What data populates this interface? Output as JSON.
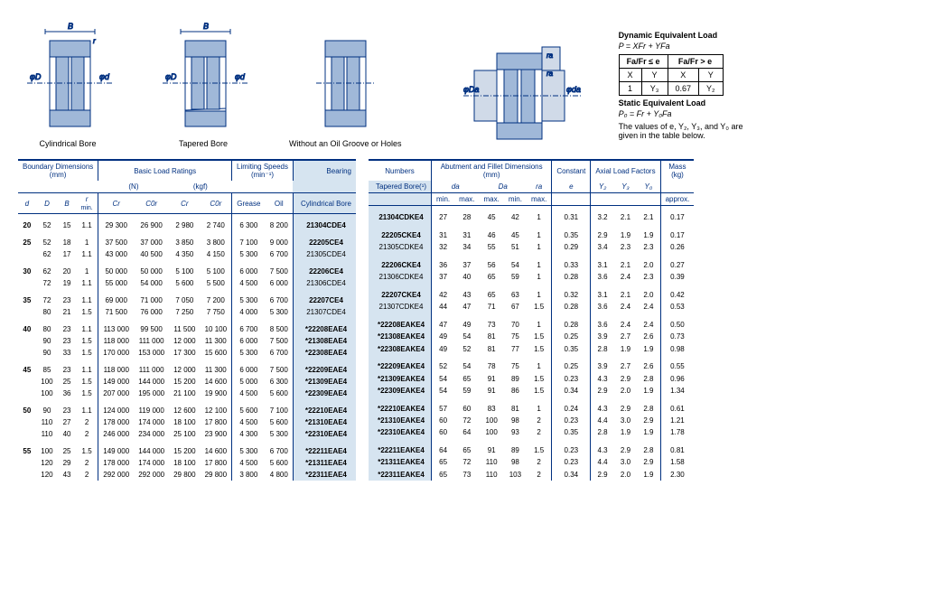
{
  "diagrams": {
    "cyl_label": "Cylindrical Bore",
    "tap_label": "Tapered Bore",
    "nooil_label": "Without an Oil Groove or Holes"
  },
  "formula": {
    "dyn_heading": "Dynamic Equivalent Load",
    "dyn_eq": "P = XFr + YFa",
    "col_le": "Fa/Fr ≤ e",
    "col_gt": "Fa/Fr > e",
    "X": "X",
    "Y": "Y",
    "v1": "1",
    "vY3": "Y₃",
    "v067": "0.67",
    "vY2": "Y₂",
    "static_heading": "Static Equivalent Load",
    "static_eq": "P₀ = Fr + Y₀Fa",
    "note": "The values of e, Y₂, Y₃, and Y₀ are given in the table below."
  },
  "left_headers": {
    "bd": "Boundary Dimensions",
    "bd_unit": "(mm)",
    "blr": "Basic Load Ratings",
    "N": "(N)",
    "kgf": "(kgf)",
    "ls": "Limiting Speeds",
    "ls_unit": "(min⁻¹)",
    "bearing": "Bearing",
    "d": "d",
    "D": "D",
    "B": "B",
    "r": "r",
    "min": "min.",
    "Cr": "Cr",
    "C0r": "C0r",
    "Crk": "Cr",
    "C0rk": "C0r",
    "grease": "Grease",
    "oil": "Oil",
    "cyl": "Cylindrical Bore"
  },
  "right_headers": {
    "numbers": "Numbers",
    "abut": "Abutment and Fillet Dimensions",
    "abut_unit": "(mm)",
    "const": "Constant",
    "axial": "Axial Load Factors",
    "mass": "Mass",
    "mass_unit": "(kg)",
    "tapered": "Tapered Bore(¹)",
    "da": "da",
    "Da": "Da",
    "ra": "ra",
    "min": "min.",
    "max": "max.",
    "e": "e",
    "Y2": "Y₂",
    "Y3": "Y₃",
    "Y0": "Y₀",
    "approx": "approx."
  },
  "left_rows": [
    [
      {
        "d": "20",
        "D": "52",
        "B": "15",
        "r": "1.1",
        "Cr": "29 300",
        "C0r": "26 900",
        "Crk": "2 980",
        "C0rk": "2 740",
        "g": "6 300",
        "o": "8 200",
        "bn": "21304CDE4",
        "bold": true
      }
    ],
    [
      {
        "d": "25",
        "D": "52",
        "B": "18",
        "r": "1",
        "Cr": "37 500",
        "C0r": "37 000",
        "Crk": "3 850",
        "C0rk": "3 800",
        "g": "7 100",
        "o": "9 000",
        "bn": "22205CE4",
        "bold": true
      },
      {
        "d": "",
        "D": "62",
        "B": "17",
        "r": "1.1",
        "Cr": "43 000",
        "C0r": "40 500",
        "Crk": "4 350",
        "C0rk": "4 150",
        "g": "5 300",
        "o": "6 700",
        "bn": "21305CDE4",
        "bold": false
      }
    ],
    [
      {
        "d": "30",
        "D": "62",
        "B": "20",
        "r": "1",
        "Cr": "50 000",
        "C0r": "50 000",
        "Crk": "5 100",
        "C0rk": "5 100",
        "g": "6 000",
        "o": "7 500",
        "bn": "22206CE4",
        "bold": true
      },
      {
        "d": "",
        "D": "72",
        "B": "19",
        "r": "1.1",
        "Cr": "55 000",
        "C0r": "54 000",
        "Crk": "5 600",
        "C0rk": "5 500",
        "g": "4 500",
        "o": "6 000",
        "bn": "21306CDE4",
        "bold": false
      }
    ],
    [
      {
        "d": "35",
        "D": "72",
        "B": "23",
        "r": "1.1",
        "Cr": "69 000",
        "C0r": "71 000",
        "Crk": "7 050",
        "C0rk": "7 200",
        "g": "5 300",
        "o": "6 700",
        "bn": "22207CE4",
        "bold": true
      },
      {
        "d": "",
        "D": "80",
        "B": "21",
        "r": "1.5",
        "Cr": "71 500",
        "C0r": "76 000",
        "Crk": "7 250",
        "C0rk": "7 750",
        "g": "4 000",
        "o": "5 300",
        "bn": "21307CDE4",
        "bold": false
      }
    ],
    [
      {
        "d": "40",
        "D": "80",
        "B": "23",
        "r": "1.1",
        "Cr": "113 000",
        "C0r": "99 500",
        "Crk": "11 500",
        "C0rk": "10 100",
        "g": "6 700",
        "o": "8 500",
        "bn": "*22208EAE4",
        "bold": true
      },
      {
        "d": "",
        "D": "90",
        "B": "23",
        "r": "1.5",
        "Cr": "118 000",
        "C0r": "111 000",
        "Crk": "12 000",
        "C0rk": "11 300",
        "g": "6 000",
        "o": "7 500",
        "bn": "*21308EAE4",
        "bold": true
      },
      {
        "d": "",
        "D": "90",
        "B": "33",
        "r": "1.5",
        "Cr": "170 000",
        "C0r": "153 000",
        "Crk": "17 300",
        "C0rk": "15 600",
        "g": "5 300",
        "o": "6 700",
        "bn": "*22308EAE4",
        "bold": true
      }
    ],
    [
      {
        "d": "45",
        "D": "85",
        "B": "23",
        "r": "1.1",
        "Cr": "118 000",
        "C0r": "111 000",
        "Crk": "12 000",
        "C0rk": "11 300",
        "g": "6 000",
        "o": "7 500",
        "bn": "*22209EAE4",
        "bold": true
      },
      {
        "d": "",
        "D": "100",
        "B": "25",
        "r": "1.5",
        "Cr": "149 000",
        "C0r": "144 000",
        "Crk": "15 200",
        "C0rk": "14 600",
        "g": "5 000",
        "o": "6 300",
        "bn": "*21309EAE4",
        "bold": true
      },
      {
        "d": "",
        "D": "100",
        "B": "36",
        "r": "1.5",
        "Cr": "207 000",
        "C0r": "195 000",
        "Crk": "21 100",
        "C0rk": "19 900",
        "g": "4 500",
        "o": "5 600",
        "bn": "*22309EAE4",
        "bold": true
      }
    ],
    [
      {
        "d": "50",
        "D": "90",
        "B": "23",
        "r": "1.1",
        "Cr": "124 000",
        "C0r": "119 000",
        "Crk": "12 600",
        "C0rk": "12 100",
        "g": "5 600",
        "o": "7 100",
        "bn": "*22210EAE4",
        "bold": true
      },
      {
        "d": "",
        "D": "110",
        "B": "27",
        "r": "2",
        "Cr": "178 000",
        "C0r": "174 000",
        "Crk": "18 100",
        "C0rk": "17 800",
        "g": "4 500",
        "o": "5 600",
        "bn": "*21310EAE4",
        "bold": true
      },
      {
        "d": "",
        "D": "110",
        "B": "40",
        "r": "2",
        "Cr": "246 000",
        "C0r": "234 000",
        "Crk": "25 100",
        "C0rk": "23 900",
        "g": "4 300",
        "o": "5 300",
        "bn": "*22310EAE4",
        "bold": true
      }
    ],
    [
      {
        "d": "55",
        "D": "100",
        "B": "25",
        "r": "1.5",
        "Cr": "149 000",
        "C0r": "144 000",
        "Crk": "15 200",
        "C0rk": "14 600",
        "g": "5 300",
        "o": "6 700",
        "bn": "*22211EAE4",
        "bold": true
      },
      {
        "d": "",
        "D": "120",
        "B": "29",
        "r": "2",
        "Cr": "178 000",
        "C0r": "174 000",
        "Crk": "18 100",
        "C0rk": "17 800",
        "g": "4 500",
        "o": "5 600",
        "bn": "*21311EAE4",
        "bold": true
      },
      {
        "d": "",
        "D": "120",
        "B": "43",
        "r": "2",
        "Cr": "292 000",
        "C0r": "292 000",
        "Crk": "29 800",
        "C0rk": "29 800",
        "g": "3 800",
        "o": "4 800",
        "bn": "*22311EAE4",
        "bold": true
      }
    ]
  ],
  "right_rows": [
    [
      {
        "bn": "21304CDKE4",
        "da_min": "27",
        "da_max": "28",
        "Da_max": "45",
        "Da_min": "42",
        "ra": "1",
        "e": "0.31",
        "Y2": "3.2",
        "Y3": "2.1",
        "Y0": "2.1",
        "m": "0.17",
        "bold": true
      }
    ],
    [
      {
        "bn": "22205CKE4",
        "da_min": "31",
        "da_max": "31",
        "Da_max": "46",
        "Da_min": "45",
        "ra": "1",
        "e": "0.35",
        "Y2": "2.9",
        "Y3": "1.9",
        "Y0": "1.9",
        "m": "0.17",
        "bold": true
      },
      {
        "bn": "21305CDKE4",
        "da_min": "32",
        "da_max": "34",
        "Da_max": "55",
        "Da_min": "51",
        "ra": "1",
        "e": "0.29",
        "Y2": "3.4",
        "Y3": "2.3",
        "Y0": "2.3",
        "m": "0.26",
        "bold": false
      }
    ],
    [
      {
        "bn": "22206CKE4",
        "da_min": "36",
        "da_max": "37",
        "Da_max": "56",
        "Da_min": "54",
        "ra": "1",
        "e": "0.33",
        "Y2": "3.1",
        "Y3": "2.1",
        "Y0": "2.0",
        "m": "0.27",
        "bold": true
      },
      {
        "bn": "21306CDKE4",
        "da_min": "37",
        "da_max": "40",
        "Da_max": "65",
        "Da_min": "59",
        "ra": "1",
        "e": "0.28",
        "Y2": "3.6",
        "Y3": "2.4",
        "Y0": "2.3",
        "m": "0.39",
        "bold": false
      }
    ],
    [
      {
        "bn": "22207CKE4",
        "da_min": "42",
        "da_max": "43",
        "Da_max": "65",
        "Da_min": "63",
        "ra": "1",
        "e": "0.32",
        "Y2": "3.1",
        "Y3": "2.1",
        "Y0": "2.0",
        "m": "0.42",
        "bold": true
      },
      {
        "bn": "21307CDKE4",
        "da_min": "44",
        "da_max": "47",
        "Da_max": "71",
        "Da_min": "67",
        "ra": "1.5",
        "e": "0.28",
        "Y2": "3.6",
        "Y3": "2.4",
        "Y0": "2.4",
        "m": "0.53",
        "bold": false
      }
    ],
    [
      {
        "bn": "*22208EAKE4",
        "da_min": "47",
        "da_max": "49",
        "Da_max": "73",
        "Da_min": "70",
        "ra": "1",
        "e": "0.28",
        "Y2": "3.6",
        "Y3": "2.4",
        "Y0": "2.4",
        "m": "0.50",
        "bold": true
      },
      {
        "bn": "*21308EAKE4",
        "da_min": "49",
        "da_max": "54",
        "Da_max": "81",
        "Da_min": "75",
        "ra": "1.5",
        "e": "0.25",
        "Y2": "3.9",
        "Y3": "2.7",
        "Y0": "2.6",
        "m": "0.73",
        "bold": true
      },
      {
        "bn": "*22308EAKE4",
        "da_min": "49",
        "da_max": "52",
        "Da_max": "81",
        "Da_min": "77",
        "ra": "1.5",
        "e": "0.35",
        "Y2": "2.8",
        "Y3": "1.9",
        "Y0": "1.9",
        "m": "0.98",
        "bold": true
      }
    ],
    [
      {
        "bn": "*22209EAKE4",
        "da_min": "52",
        "da_max": "54",
        "Da_max": "78",
        "Da_min": "75",
        "ra": "1",
        "e": "0.25",
        "Y2": "3.9",
        "Y3": "2.7",
        "Y0": "2.6",
        "m": "0.55",
        "bold": true
      },
      {
        "bn": "*21309EAKE4",
        "da_min": "54",
        "da_max": "65",
        "Da_max": "91",
        "Da_min": "89",
        "ra": "1.5",
        "e": "0.23",
        "Y2": "4.3",
        "Y3": "2.9",
        "Y0": "2.8",
        "m": "0.96",
        "bold": true
      },
      {
        "bn": "*22309EAKE4",
        "da_min": "54",
        "da_max": "59",
        "Da_max": "91",
        "Da_min": "86",
        "ra": "1.5",
        "e": "0.34",
        "Y2": "2.9",
        "Y3": "2.0",
        "Y0": "1.9",
        "m": "1.34",
        "bold": true
      }
    ],
    [
      {
        "bn": "*22210EAKE4",
        "da_min": "57",
        "da_max": "60",
        "Da_max": "83",
        "Da_min": "81",
        "ra": "1",
        "e": "0.24",
        "Y2": "4.3",
        "Y3": "2.9",
        "Y0": "2.8",
        "m": "0.61",
        "bold": true
      },
      {
        "bn": "*21310EAKE4",
        "da_min": "60",
        "da_max": "72",
        "Da_max": "100",
        "Da_min": "98",
        "ra": "2",
        "e": "0.23",
        "Y2": "4.4",
        "Y3": "3.0",
        "Y0": "2.9",
        "m": "1.21",
        "bold": true
      },
      {
        "bn": "*22310EAKE4",
        "da_min": "60",
        "da_max": "64",
        "Da_max": "100",
        "Da_min": "93",
        "ra": "2",
        "e": "0.35",
        "Y2": "2.8",
        "Y3": "1.9",
        "Y0": "1.9",
        "m": "1.78",
        "bold": true
      }
    ],
    [
      {
        "bn": "*22211EAKE4",
        "da_min": "64",
        "da_max": "65",
        "Da_max": "91",
        "Da_min": "89",
        "ra": "1.5",
        "e": "0.23",
        "Y2": "4.3",
        "Y3": "2.9",
        "Y0": "2.8",
        "m": "0.81",
        "bold": true
      },
      {
        "bn": "*21311EAKE4",
        "da_min": "65",
        "da_max": "72",
        "Da_max": "110",
        "Da_min": "98",
        "ra": "2",
        "e": "0.23",
        "Y2": "4.4",
        "Y3": "3.0",
        "Y0": "2.9",
        "m": "1.58",
        "bold": true
      },
      {
        "bn": "*22311EAKE4",
        "da_min": "65",
        "da_max": "73",
        "Da_max": "110",
        "Da_min": "103",
        "ra": "2",
        "e": "0.34",
        "Y2": "2.9",
        "Y3": "2.0",
        "Y0": "1.9",
        "m": "2.30",
        "bold": true
      }
    ]
  ]
}
